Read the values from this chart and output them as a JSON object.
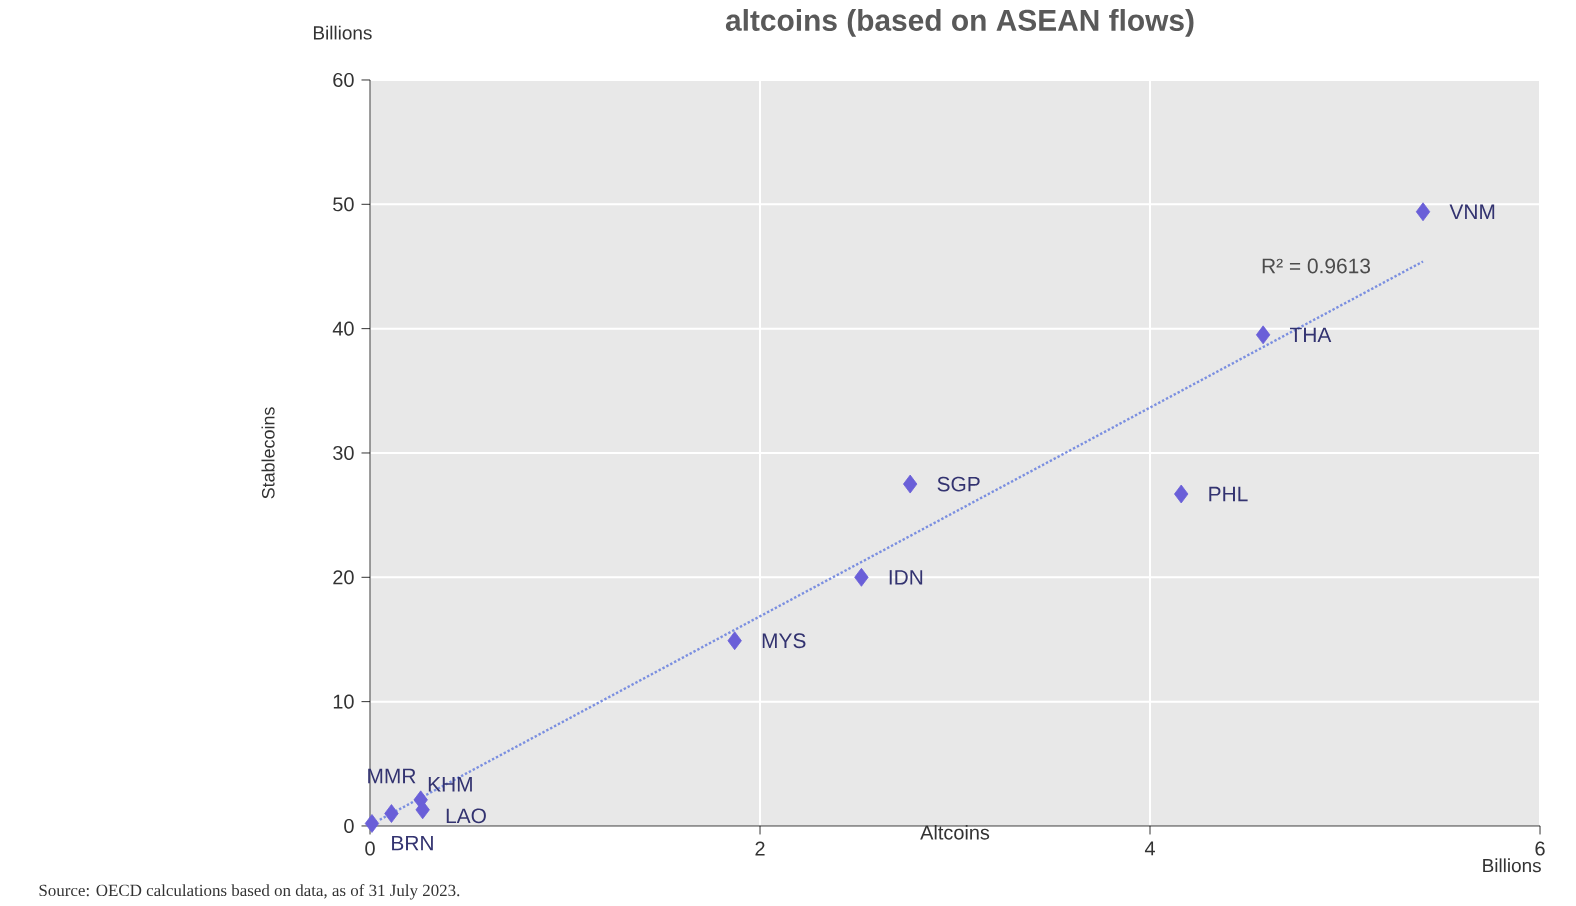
{
  "chart_data": {
    "type": "scatter",
    "title": "altcoins (based on ASEAN flows)",
    "xlabel": "Altcoins",
    "ylabel": "Stablecoins",
    "xlim": [
      0,
      6
    ],
    "xticks": [
      0,
      2,
      4,
      6
    ],
    "ylim": [
      0,
      60
    ],
    "yticks": [
      0,
      10,
      20,
      30,
      40,
      50,
      60
    ],
    "grid": true,
    "series": [
      {
        "marker": "diamond",
        "color": "#6a5fd8",
        "x": [
          0.01,
          0.11,
          0.26,
          0.27,
          1.87,
          2.52,
          2.77,
          4.16,
          4.58,
          5.4
        ],
        "values": [
          0.2,
          1.0,
          2.1,
          1.3,
          14.9,
          20.0,
          27.5,
          26.7,
          39.5,
          49.4
        ]
      },
      {
        "type": "line",
        "color": "#7b8fe0",
        "line_style": "dotted",
        "x": [
          0.05,
          5.4
        ],
        "values": [
          0.5,
          45.4
        ]
      }
    ],
    "annotations": [
      {
        "text": "BRN",
        "x": 0.01,
        "y": 0.2
      },
      {
        "text": "MMR",
        "x": 0.11,
        "y": 1.0
      },
      {
        "text": "KHM",
        "x": 0.26,
        "y": 2.1
      },
      {
        "text": "LAO",
        "x": 0.27,
        "y": 1.3
      },
      {
        "text": "MYS",
        "x": 1.87,
        "y": 14.9
      },
      {
        "text": "IDN",
        "x": 2.52,
        "y": 20.0
      },
      {
        "text": "SGP",
        "x": 2.77,
        "y": 27.5
      },
      {
        "text": "PHL",
        "x": 4.16,
        "y": 26.7
      },
      {
        "text": "THA",
        "x": 4.58,
        "y": 39.5
      },
      {
        "text": "VNM",
        "x": 5.4,
        "y": 49.4
      },
      "R² = 0.9613",
      "Billions",
      "Billions",
      "Source: OECD calculations based on data, as of 31 July 2023."
    ]
  }
}
